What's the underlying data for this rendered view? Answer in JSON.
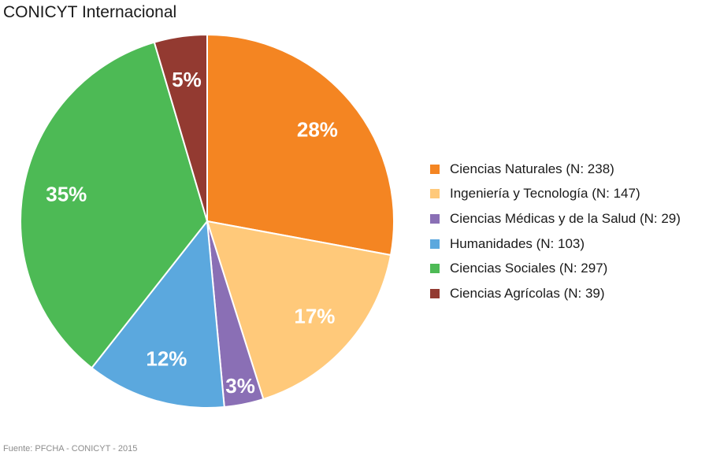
{
  "chart_data": {
    "type": "pie",
    "title": "CONICYT Internacional",
    "categories": [
      "Ciencias Naturales (N: 238)",
      "Ingeniería y Tecnología (N: 147)",
      "Ciencias Médicas y de la Salud (N: 29)",
      "Humanidades (N: 103)",
      "Ciencias Sociales (N: 297)",
      "Ciencias Agrícolas (N: 39)"
    ],
    "values": [
      238,
      147,
      29,
      103,
      297,
      39
    ],
    "percent_labels": [
      "28%",
      "17%",
      "3%",
      "12%",
      "35%",
      "5%"
    ],
    "colors": [
      "#F48522",
      "#FFC97A",
      "#8A6FB5",
      "#5BA8DE",
      "#4DBA55",
      "#933A31"
    ],
    "legend_position": "right",
    "start": "12 o'clock, clockwise",
    "source": "Fuente: PFCHA - CONICYT - 2015"
  }
}
